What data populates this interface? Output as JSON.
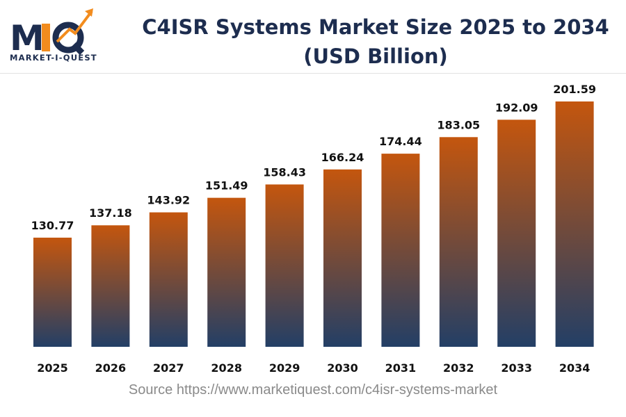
{
  "logo": {
    "text": "MARKET-I-QUEST",
    "letters": "MIQ",
    "colors": {
      "navy": "#1d2d4f",
      "orange": "#f28c1e"
    }
  },
  "title": "C4ISR Systems Market Size 2025 to 2034 (USD Billion)",
  "source": "Source https://www.marketiquest.com/c4isr-systems-market",
  "chart_data": {
    "type": "bar",
    "title": "C4ISR Systems Market Size 2025 to 2034 (USD Billion)",
    "categories": [
      "2025",
      "2026",
      "2027",
      "2028",
      "2029",
      "2030",
      "2031",
      "2032",
      "2033",
      "2034"
    ],
    "values": [
      130.77,
      137.18,
      143.92,
      151.49,
      158.43,
      166.24,
      174.44,
      183.05,
      192.09,
      201.59
    ],
    "value_labels": [
      "130.77",
      "137.18",
      "143.92",
      "151.49",
      "158.43",
      "166.24",
      "174.44",
      "183.05",
      "192.09",
      "201.59"
    ],
    "xlabel": "",
    "ylabel": "",
    "ylim": [
      74,
      201.59
    ],
    "grid": false,
    "gradient": {
      "top": "#c4560e",
      "bottom": "#233f66"
    }
  }
}
